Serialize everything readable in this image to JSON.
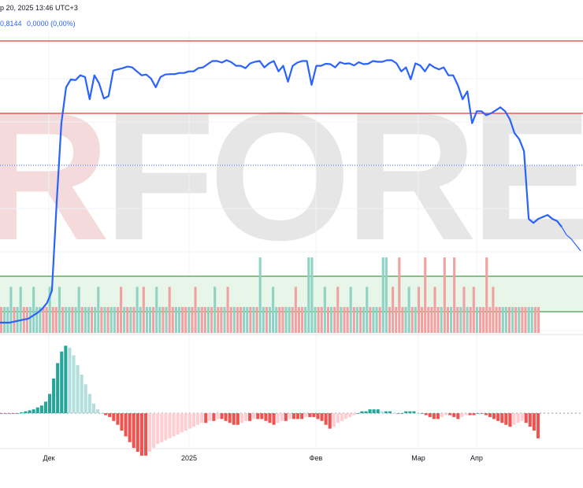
{
  "header": {
    "datetime_text": "р 20, 2025 13:46 UTC+3",
    "indicator_value": "0,8144",
    "indicator_change": "0,0000 (0,00%)"
  },
  "watermark": {
    "text": "RFOREX"
  },
  "colors": {
    "price_line": "#2962ff",
    "red_level": "#e53935",
    "green_level": "#43a047",
    "zone_fill": "#e8f5e9",
    "bar_up": "#8fd3c4",
    "bar_down": "#f2a1a1",
    "hist_up_strong": "#26a69a",
    "hist_up_weak": "#b2dfdb",
    "hist_down_strong": "#ef5350",
    "hist_down_weak": "#ffcdd2"
  },
  "chart_data": [
    {
      "type": "line",
      "name": "price",
      "level_lines": [
        {
          "y": 0.7,
          "color": "red"
        },
        {
          "y": 0.45,
          "color": "red"
        },
        {
          "y": 0.28,
          "color": "blue-dotted"
        }
      ],
      "x": [
        0,
        4,
        8,
        12,
        16,
        18,
        20,
        22,
        24,
        26,
        28,
        30,
        32,
        34,
        36,
        38,
        40,
        42,
        44,
        46,
        48,
        50,
        52,
        54,
        56,
        58,
        60,
        62,
        64,
        66,
        68,
        70,
        72,
        74,
        76,
        78,
        80,
        82,
        84,
        86,
        88,
        90,
        92,
        94,
        96,
        98,
        100,
        102,
        104,
        106,
        108,
        110,
        112,
        114,
        116,
        118,
        120,
        122,
        124,
        126,
        128,
        130,
        132,
        134,
        136,
        138,
        140,
        142,
        144,
        146,
        148,
        150,
        152,
        154,
        156,
        158,
        160,
        162,
        164,
        166,
        168,
        170,
        172,
        174,
        176,
        178,
        180,
        182,
        184,
        186,
        188,
        190,
        192,
        194,
        196,
        198,
        200,
        202,
        204,
        206,
        208,
        210,
        212,
        214,
        216,
        218,
        220,
        222,
        224,
        226,
        228,
        230,
        232,
        234,
        236,
        238,
        240,
        242,
        244,
        246
      ],
      "y": [
        0.02,
        0.02,
        0.025,
        0.03,
        0.045,
        0.055,
        0.07,
        0.1,
        0.32,
        0.52,
        0.61,
        0.63,
        0.628,
        0.64,
        0.636,
        0.58,
        0.64,
        0.62,
        0.582,
        0.588,
        0.652,
        0.655,
        0.658,
        0.662,
        0.66,
        0.65,
        0.64,
        0.642,
        0.632,
        0.61,
        0.636,
        0.642,
        0.643,
        0.643,
        0.646,
        0.646,
        0.65,
        0.65,
        0.658,
        0.66,
        0.668,
        0.676,
        0.676,
        0.672,
        0.678,
        0.673,
        0.664,
        0.664,
        0.658,
        0.67,
        0.674,
        0.676,
        0.66,
        0.67,
        0.676,
        0.65,
        0.664,
        0.624,
        0.664,
        0.672,
        0.676,
        0.676,
        0.616,
        0.664,
        0.664,
        0.669,
        0.668,
        0.66,
        0.673,
        0.669,
        0.67,
        0.665,
        0.673,
        0.668,
        0.669,
        0.676,
        0.674,
        0.674,
        0.678,
        0.678,
        0.67,
        0.65,
        0.66,
        0.63,
        0.67,
        0.665,
        0.65,
        0.668,
        0.66,
        0.655,
        0.66,
        0.64,
        0.64,
        0.615,
        0.58,
        0.6,
        0.52,
        0.55,
        0.55,
        0.54,
        0.545,
        0.552,
        0.56,
        0.55,
        0.53,
        0.495,
        0.48,
        0.45,
        0.28,
        0.27,
        0.28,
        0.285,
        0.29,
        0.28,
        0.275,
        0.26,
        0.24,
        0.23,
        0.215,
        0.2
      ],
      "ylim": [
        0,
        0.75
      ],
      "xlim": [
        0,
        247
      ]
    },
    {
      "type": "bar",
      "name": "volume",
      "zone": {
        "top": 0.7,
        "bottom": 0.28
      },
      "values_up": [],
      "bars": [
        0,
        1,
        1,
        0,
        0,
        1,
        1,
        0,
        0,
        1,
        0,
        1,
        1,
        0,
        0,
        1,
        0,
        0,
        1,
        0,
        1,
        1,
        0,
        1,
        0,
        0,
        1,
        1,
        0,
        1,
        0,
        0,
        1,
        0,
        1,
        1,
        0,
        0,
        1,
        0,
        1,
        0,
        0,
        1,
        0,
        1,
        1,
        0,
        0,
        1,
        0,
        1,
        0,
        0,
        1,
        1,
        0,
        0,
        1,
        0,
        1,
        1,
        0,
        0,
        1,
        0,
        1,
        0,
        0,
        1,
        1,
        0,
        1,
        0,
        0,
        1,
        1,
        0,
        1,
        0,
        0,
        1,
        0,
        1,
        0,
        1,
        0,
        0,
        1,
        1,
        0,
        1,
        0,
        0,
        1,
        1,
        0,
        1,
        0,
        0,
        1,
        0,
        1,
        0,
        1,
        1,
        0,
        0,
        1,
        0,
        1,
        0,
        1,
        0,
        0,
        1,
        1,
        0,
        1,
        0,
        0,
        1,
        0,
        1,
        0,
        1,
        0,
        0,
        1,
        1,
        0,
        1,
        0,
        0,
        1,
        0,
        1,
        1,
        0,
        1,
        0,
        0,
        1,
        0,
        1,
        0,
        1,
        1,
        0,
        0,
        1,
        0,
        1,
        0,
        0,
        1,
        1,
        0,
        1,
        0,
        1,
        0,
        0,
        1,
        1,
        0,
        0
      ],
      "tall_spikes": [
        {
          "i": 3,
          "h": 0.58,
          "up": true
        },
        {
          "i": 6,
          "h": 0.58,
          "up": true
        },
        {
          "i": 10,
          "h": 0.58,
          "up": true
        },
        {
          "i": 15,
          "h": 0.58,
          "up": true
        },
        {
          "i": 18,
          "h": 0.58,
          "up": true
        },
        {
          "i": 24,
          "h": 0.58,
          "up": true
        },
        {
          "i": 30,
          "h": 0.58,
          "up": true
        },
        {
          "i": 37,
          "h": 0.58,
          "up": false
        },
        {
          "i": 42,
          "h": 0.58,
          "up": true
        },
        {
          "i": 44,
          "h": 0.58,
          "up": false
        },
        {
          "i": 48,
          "h": 0.58,
          "up": true
        },
        {
          "i": 52,
          "h": 0.58,
          "up": false
        },
        {
          "i": 60,
          "h": 0.58,
          "up": false
        },
        {
          "i": 66,
          "h": 0.58,
          "up": true
        },
        {
          "i": 70,
          "h": 0.58,
          "up": false
        },
        {
          "i": 80,
          "h": 0.95,
          "up": true
        },
        {
          "i": 84,
          "h": 0.58,
          "up": true
        },
        {
          "i": 91,
          "h": 0.58,
          "up": false
        },
        {
          "i": 95,
          "h": 0.95,
          "up": true
        },
        {
          "i": 96,
          "h": 0.95,
          "up": true
        },
        {
          "i": 100,
          "h": 0.58,
          "up": true
        },
        {
          "i": 104,
          "h": 0.58,
          "up": false
        },
        {
          "i": 108,
          "h": 0.58,
          "up": true
        },
        {
          "i": 113,
          "h": 0.58,
          "up": true
        },
        {
          "i": 118,
          "h": 0.95,
          "up": true
        },
        {
          "i": 119,
          "h": 0.95,
          "up": true
        },
        {
          "i": 121,
          "h": 0.58,
          "up": false
        },
        {
          "i": 123,
          "h": 0.95,
          "up": false
        },
        {
          "i": 126,
          "h": 0.58,
          "up": true
        },
        {
          "i": 129,
          "h": 0.58,
          "up": false
        },
        {
          "i": 131,
          "h": 0.95,
          "up": false
        },
        {
          "i": 134,
          "h": 0.58,
          "up": false
        },
        {
          "i": 137,
          "h": 0.95,
          "up": false
        },
        {
          "i": 140,
          "h": 0.95,
          "up": false
        },
        {
          "i": 143,
          "h": 0.58,
          "up": false
        },
        {
          "i": 146,
          "h": 0.58,
          "up": false
        },
        {
          "i": 150,
          "h": 0.95,
          "up": false
        },
        {
          "i": 152,
          "h": 0.58,
          "up": false
        }
      ]
    },
    {
      "type": "bar",
      "name": "histogram",
      "values": [
        0,
        0,
        0,
        0,
        0,
        0.5,
        1,
        1.5,
        2,
        3,
        4,
        6,
        10,
        18,
        26,
        32,
        35,
        34,
        30,
        25,
        20,
        15,
        10,
        5,
        2,
        0,
        -1,
        -2,
        -4,
        -6,
        -9,
        -12,
        -15,
        -18,
        -20,
        -22,
        -22,
        -20,
        -18,
        -16,
        -15,
        -14,
        -13,
        -12,
        -11,
        -10,
        -9,
        -8,
        -7,
        -6,
        -5,
        -5,
        -4,
        -4,
        -3,
        -3,
        -4,
        -5,
        -6,
        -6,
        -5,
        -4,
        -4,
        -3,
        -3,
        -3,
        -4,
        -5,
        -6,
        -5,
        -4,
        -4,
        -3,
        -3,
        -3,
        -3,
        -2,
        -2,
        -2,
        -3,
        -4,
        -6,
        -8,
        -7,
        -5,
        -4,
        -3,
        -2,
        -1,
        0,
        1,
        1,
        2,
        2,
        2,
        1,
        1,
        1,
        0,
        0,
        0,
        1,
        1,
        1,
        0,
        0,
        -1,
        -2,
        -3,
        -3,
        -2,
        -1,
        -1,
        -2,
        -3,
        -2,
        -1,
        -1,
        -1,
        0,
        0,
        -1,
        -2,
        -3,
        -4,
        -5,
        -6,
        -7,
        -6,
        -5,
        -4,
        -5,
        -7,
        -9,
        -13
      ],
      "ylim": [
        -26,
        38
      ]
    }
  ],
  "x_axis": {
    "ticks": [
      {
        "label": "Дек",
        "pos": 62
      },
      {
        "label": "2025",
        "pos": 240
      },
      {
        "label": "Фев",
        "pos": 401
      },
      {
        "label": "Мар",
        "pos": 531
      },
      {
        "label": "Апр",
        "pos": 605
      }
    ]
  }
}
